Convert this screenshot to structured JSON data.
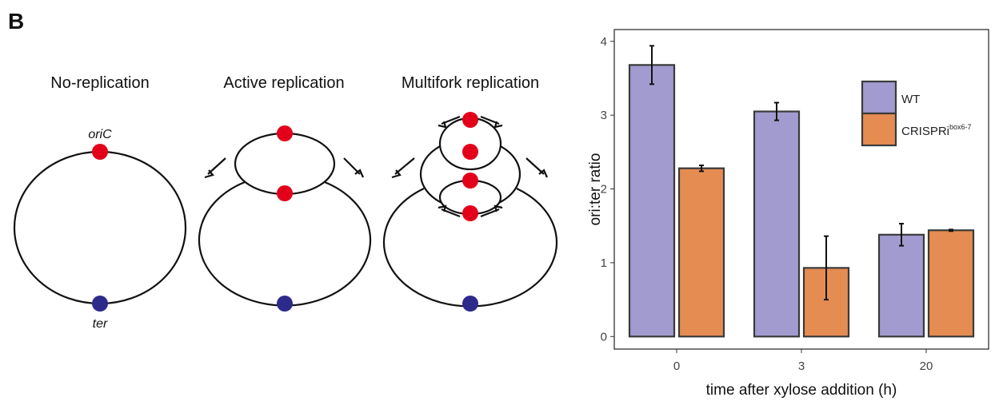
{
  "panel_label": "B",
  "diagram": {
    "panels": [
      {
        "title": "No-replication"
      },
      {
        "title": "Active replication"
      },
      {
        "title": "Multifork replication"
      }
    ],
    "ori_label": "oriC",
    "ter_label": "ter"
  },
  "chart_data": {
    "type": "bar",
    "categories": [
      "0",
      "3",
      "20"
    ],
    "x_label": "time after xylose addition (h)",
    "y_label": "ori:ter ratio",
    "series": [
      {
        "name": "WT",
        "color": "#a29bcf",
        "values": [
          3.68,
          3.05,
          1.38
        ],
        "errors": [
          0.26,
          0.12,
          0.15
        ]
      },
      {
        "name": "CRISPRi",
        "name_superscript": "box6-7",
        "color": "#e58c52",
        "values": [
          2.28,
          0.93,
          1.44
        ],
        "errors": [
          0.04,
          0.43,
          0.01
        ]
      }
    ],
    "ylim": [
      -0.17,
      4.16
    ],
    "yticks": [
      0,
      1,
      2,
      3,
      4
    ],
    "grid": false,
    "legend": "top-right"
  }
}
